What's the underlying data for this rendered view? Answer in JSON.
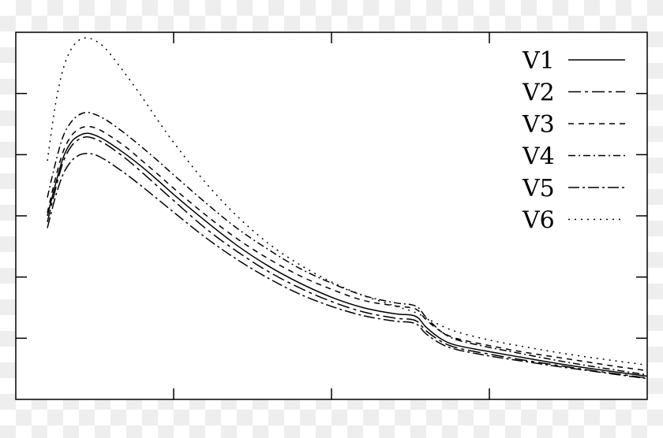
{
  "chart_data": {
    "type": "line",
    "title": "",
    "xlabel": "",
    "ylabel": "",
    "xlim": [
      0,
      4
    ],
    "ylim": [
      0,
      6
    ],
    "grid": false,
    "legend_position": "top-right",
    "x": [
      0.2,
      0.25,
      0.3,
      0.35,
      0.4,
      0.45,
      0.5,
      0.55,
      0.6,
      0.7,
      0.8,
      0.9,
      1.0,
      1.2,
      1.4,
      1.6,
      1.8,
      2.0,
      2.2,
      2.4,
      2.5,
      2.55,
      2.6,
      2.7,
      2.8,
      3.0,
      3.2,
      3.4,
      3.6,
      3.8,
      4.0
    ],
    "series": [
      {
        "name": "V1",
        "dash": "",
        "values": [
          3.0,
          3.5,
          3.95,
          4.2,
          4.31,
          4.35,
          4.32,
          4.26,
          4.18,
          4.0,
          3.8,
          3.58,
          3.35,
          2.92,
          2.52,
          2.18,
          1.9,
          1.67,
          1.5,
          1.4,
          1.38,
          1.33,
          1.18,
          0.98,
          0.88,
          0.78,
          0.69,
          0.6,
          0.52,
          0.45,
          0.38
        ]
      },
      {
        "name": "V2",
        "dash": "16 5 4 5",
        "values": [
          2.9,
          3.42,
          3.88,
          4.13,
          4.25,
          4.29,
          4.26,
          4.2,
          4.12,
          3.93,
          3.71,
          3.48,
          3.25,
          2.8,
          2.42,
          2.09,
          1.82,
          1.6,
          1.43,
          1.33,
          1.31,
          1.26,
          1.12,
          0.94,
          0.84,
          0.74,
          0.65,
          0.57,
          0.49,
          0.42,
          0.35
        ]
      },
      {
        "name": "V3",
        "dash": "7 6",
        "values": [
          3.05,
          3.6,
          4.05,
          4.3,
          4.42,
          4.46,
          4.44,
          4.38,
          4.3,
          4.12,
          3.9,
          3.68,
          3.45,
          3.02,
          2.63,
          2.3,
          2.02,
          1.8,
          1.62,
          1.53,
          1.5,
          1.45,
          1.3,
          1.1,
          0.99,
          0.88,
          0.78,
          0.7,
          0.62,
          0.54,
          0.47
        ]
      },
      {
        "name": "V4",
        "dash": "9 4 2 4",
        "values": [
          3.3,
          3.85,
          4.3,
          4.53,
          4.65,
          4.69,
          4.66,
          4.6,
          4.52,
          4.33,
          4.12,
          3.9,
          3.67,
          3.22,
          2.8,
          2.45,
          2.14,
          1.9,
          1.7,
          1.58,
          1.55,
          1.5,
          1.34,
          1.1,
          0.97,
          0.85,
          0.75,
          0.65,
          0.56,
          0.48,
          0.4
        ]
      },
      {
        "name": "V5",
        "dash": "14 4 3 4",
        "values": [
          2.8,
          3.3,
          3.68,
          3.89,
          3.99,
          4.02,
          4.0,
          3.94,
          3.86,
          3.68,
          3.48,
          3.27,
          3.06,
          2.65,
          2.29,
          1.98,
          1.72,
          1.52,
          1.37,
          1.28,
          1.26,
          1.21,
          1.07,
          0.9,
          0.81,
          0.71,
          0.63,
          0.55,
          0.48,
          0.41,
          0.34
        ]
      },
      {
        "name": "V6",
        "dash": "2 6",
        "values": [
          3.9,
          4.8,
          5.4,
          5.72,
          5.87,
          5.91,
          5.87,
          5.78,
          5.64,
          5.3,
          4.94,
          4.56,
          4.2,
          3.55,
          3.0,
          2.55,
          2.2,
          1.92,
          1.7,
          1.53,
          1.45,
          1.4,
          1.33,
          1.2,
          1.1,
          0.97,
          0.87,
          0.78,
          0.7,
          0.63,
          0.56
        ]
      }
    ]
  }
}
